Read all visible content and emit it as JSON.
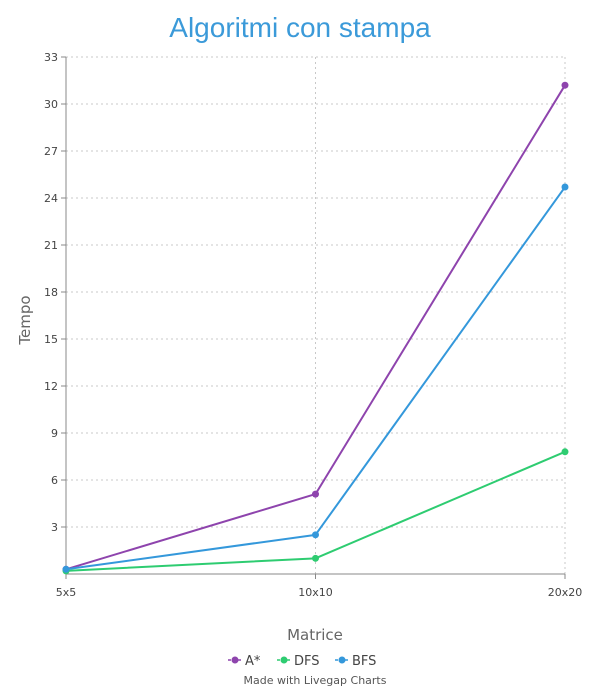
{
  "chart_data": {
    "type": "line",
    "title": "Algoritmi con stampa",
    "xlabel": "Matrice",
    "ylabel": "Tempo",
    "categories": [
      "5x5",
      "10x10",
      "20x20"
    ],
    "ylim": [
      0,
      33
    ],
    "yticks": [
      "3",
      "6",
      "9",
      "12",
      "15",
      "18",
      "21",
      "24",
      "27",
      "30",
      "33"
    ],
    "grid": true,
    "legend_position": "bottom",
    "series": [
      {
        "name": "A*",
        "color": "#8e44ad",
        "values": [
          0.3,
          5.1,
          31.2
        ]
      },
      {
        "name": "DFS",
        "color": "#2ecc71",
        "values": [
          0.2,
          1.0,
          7.8
        ]
      },
      {
        "name": "BFS",
        "color": "#3498db",
        "values": [
          0.3,
          2.5,
          24.7
        ]
      }
    ],
    "title_color": "#3b9ad9"
  },
  "credit": "Made with Livegap Charts"
}
